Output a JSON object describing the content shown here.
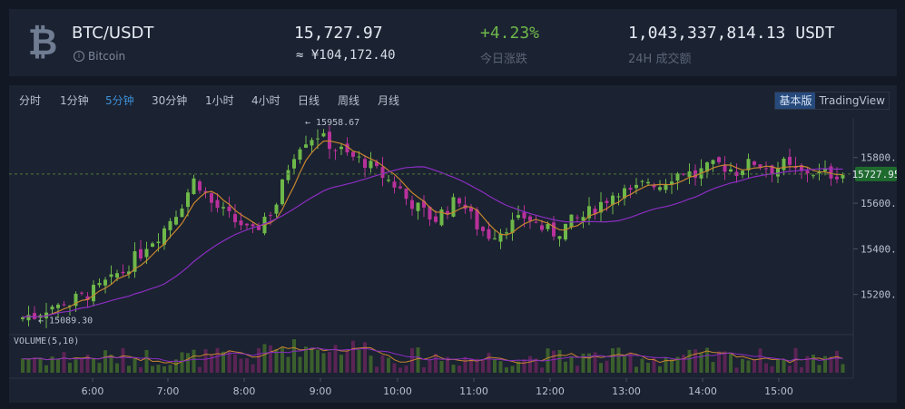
{
  "header": {
    "coin_symbol": "₿",
    "pair": "BTC/USDT",
    "coin_name": "Bitcoin",
    "info_icon": "i",
    "price": "15,727.97",
    "price_cny": "≈ ¥104,172.40",
    "change": "+4.23%",
    "change_label": "今日涨跌",
    "volume_24h": "1,043,337,814.13 USDT",
    "volume_label": "24H 成交额"
  },
  "toolbar": {
    "timeframes": [
      "分时",
      "1分钟",
      "5分钟",
      "30分钟",
      "1小时",
      "4小时",
      "日线",
      "周线",
      "月线"
    ],
    "active_timeframe": "5分钟",
    "view_basic": "基本版",
    "view_tradingview": "TradingView",
    "active_view": "基本版"
  },
  "colors": {
    "up": "#6eb84a",
    "down": "#b8319b",
    "ma_fast": "#c8862f",
    "ma_slow": "#8b2ec2",
    "accent": "#3d8fd6",
    "last_price_bg": "#1f6b2e"
  },
  "chart_data": {
    "type": "candlestick",
    "y_ticks": [
      15200,
      15400,
      15600,
      15800
    ],
    "y_tick_labels": [
      "15200.00",
      "15400.00",
      "15600.00",
      "15800.00"
    ],
    "ylim": [
      15000,
      15950
    ],
    "x_tick_labels": [
      "6:00",
      "7:00",
      "8:00",
      "9:00",
      "10:00",
      "11:00",
      "12:00",
      "13:00",
      "14:00",
      "15:00"
    ],
    "high_annotation": "← 15958.67",
    "high_value": 15958.67,
    "low_annotation": "← 15089.30",
    "low_value": 15089.3,
    "last_price_label": "15727.95",
    "last_price": 15727.95,
    "volume_label": "VOLUME(5,10)",
    "candle_count": 140
  }
}
